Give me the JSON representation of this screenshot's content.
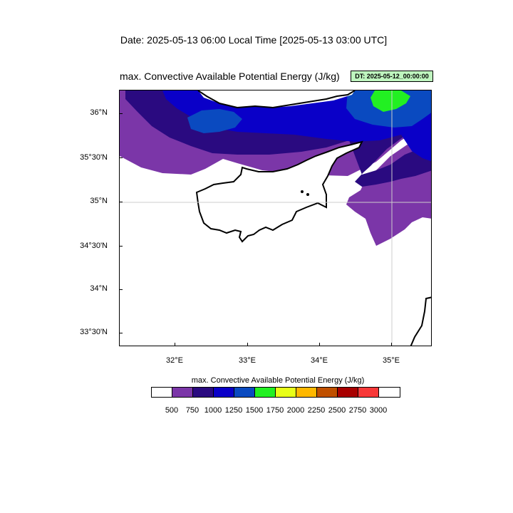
{
  "header": {
    "date_title": "Date: 2025-05-13  06:00 Local Time [2025-05-13  03:00 UTC]",
    "map_title": "max. Convective Available Potential Energy   (J/kg)",
    "dt_badge": "DT: 2025-05-12_00:00:00"
  },
  "map": {
    "lat_labels": [
      "36°N",
      "35°30'N",
      "35°N",
      "34°30'N",
      "34°N",
      "33°30'N"
    ],
    "lon_labels": [
      "32°E",
      "33°E",
      "34°E",
      "35°E"
    ],
    "fill_colors": {
      "cape_500": "#7b36a8",
      "cape_750": "#2a0a80",
      "cape_1000": "#0a00c8",
      "cape_1250": "#0a4ac0",
      "cape_1750": "#22f022"
    },
    "coast_color": "#000000",
    "gridline_color": "#cccccc"
  },
  "colorbar": {
    "title": "max. Convective Available Potential Energy  (J/kg)",
    "colors": [
      "#ffffff",
      "#7b36a8",
      "#2a0a80",
      "#0a00c8",
      "#0a4ac0",
      "#22f022",
      "#e8ff18",
      "#ffb800",
      "#c05000",
      "#a80000",
      "#f83838",
      "#ffffff"
    ],
    "labels": [
      "500",
      "750",
      "1000",
      "1250",
      "1500",
      "1750",
      "2000",
      "2250",
      "2500",
      "2750",
      "3000"
    ]
  }
}
